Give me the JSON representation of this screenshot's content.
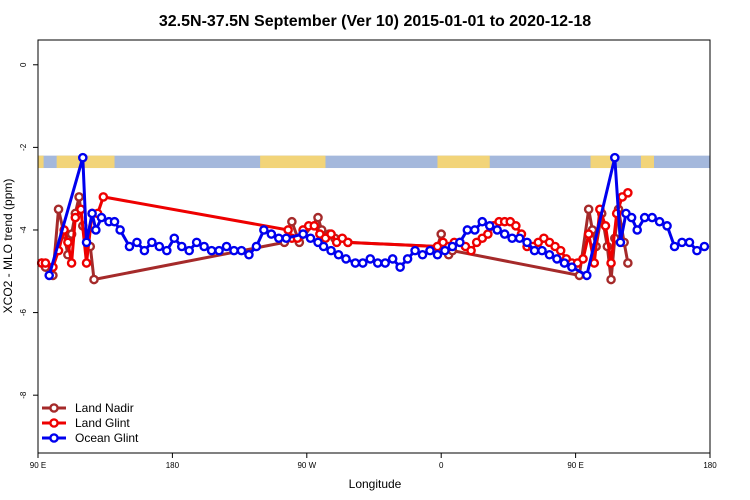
{
  "chart_data": {
    "type": "line",
    "title": "32.5N-37.5N September (Ver 10)   2015-01-01 to 2020-12-18",
    "xlabel": "Longitude",
    "ylabel": "XCO2 - MLO trend (ppm)",
    "xlim": [
      90,
      450
    ],
    "ylim": [
      -9.4,
      0.6
    ],
    "x_ticks": [
      {
        "value": 90,
        "label": "90 E"
      },
      {
        "value": 162,
        "label": "180"
      },
      {
        "value": 234,
        "label": "90 W"
      },
      {
        "value": 306,
        "label": "0"
      },
      {
        "value": 378,
        "label": "90 E"
      },
      {
        "value": 450,
        "label": "180"
      }
    ],
    "y_ticks": [
      0,
      -2,
      -4,
      -6,
      -8
    ],
    "land_ocean_band": {
      "y_top": -2.2,
      "y_bottom": -2.5,
      "ocean_color": "#a4b8dc",
      "land_color": "#f2d479",
      "land_ranges": [
        [
          90,
          93
        ],
        [
          100,
          131
        ],
        [
          209,
          244
        ],
        [
          304,
          332
        ],
        [
          386,
          398
        ],
        [
          413,
          420
        ]
      ]
    },
    "legend_position": "bottom-left",
    "series": [
      {
        "name": "Land Nadir",
        "color": "#a52a2a",
        "x": [
          92,
          94,
          98,
          101,
          104,
          106,
          108,
          110,
          112,
          114,
          118,
          120,
          222,
          226,
          230,
          240,
          242,
          246,
          249,
          256,
          304,
          306,
          308,
          310,
          312,
          380,
          385,
          387,
          389,
          392,
          395,
          397,
          399,
          401,
          404,
          406
        ],
        "y": [
          -4.8,
          -4.9,
          -5.1,
          -3.5,
          -4.1,
          -4.6,
          -4.1,
          -3.6,
          -3.2,
          -3.9,
          -4.4,
          -5.2,
          -4.3,
          -3.8,
          -4.3,
          -3.7,
          -4.0,
          -4.1,
          -4.2,
          -4.3,
          -4.4,
          -4.1,
          -4.4,
          -4.6,
          -4.5,
          -5.1,
          -3.5,
          -4.0,
          -4.4,
          -3.6,
          -4.4,
          -5.2,
          -4.2,
          -3.5,
          -4.3,
          -4.8
        ]
      },
      {
        "name": "Land Glint",
        "color": "#ee0000",
        "x": [
          92,
          94,
          98,
          101,
          104,
          106,
          108,
          110,
          113,
          116,
          119,
          122,
          125,
          224,
          226,
          229,
          232,
          235,
          238,
          241,
          244,
          247,
          250,
          253,
          256,
          304,
          307,
          310,
          313,
          316,
          319,
          322,
          325,
          328,
          331,
          334,
          337,
          340,
          343,
          346,
          349,
          352,
          355,
          358,
          361,
          364,
          367,
          370,
          373,
          376,
          379,
          382,
          385,
          388,
          391,
          394,
          397,
          400,
          403,
          406
        ],
        "y": [
          -4.8,
          -4.8,
          -4.9,
          -4.5,
          -4.0,
          -4.3,
          -4.8,
          -3.7,
          -3.5,
          -4.8,
          -3.6,
          -3.6,
          -3.2,
          -4.0,
          -4.2,
          -4.2,
          -4.0,
          -3.9,
          -3.9,
          -4.1,
          -4.2,
          -4.1,
          -4.3,
          -4.2,
          -4.3,
          -4.4,
          -4.3,
          -4.4,
          -4.3,
          -4.3,
          -4.4,
          -4.5,
          -4.3,
          -4.2,
          -4.1,
          -3.9,
          -3.8,
          -3.8,
          -3.8,
          -3.9,
          -4.1,
          -4.4,
          -4.4,
          -4.3,
          -4.2,
          -4.3,
          -4.4,
          -4.5,
          -4.7,
          -4.8,
          -4.8,
          -4.7,
          -4.1,
          -4.8,
          -3.5,
          -3.9,
          -4.8,
          -3.6,
          -3.2,
          -3.1
        ]
      },
      {
        "name": "Ocean Glint",
        "color": "#0000ee",
        "x": [
          96,
          114,
          116,
          119,
          121,
          124,
          128,
          131,
          134,
          139,
          143,
          147,
          151,
          155,
          159,
          163,
          167,
          171,
          175,
          179,
          183,
          187,
          191,
          195,
          199,
          203,
          207,
          211,
          215,
          219,
          223,
          232,
          236,
          240,
          243,
          247,
          251,
          255,
          260,
          264,
          268,
          272,
          276,
          280,
          284,
          288,
          292,
          296,
          300,
          304,
          308,
          312,
          316,
          320,
          324,
          328,
          332,
          336,
          340,
          344,
          348,
          352,
          356,
          360,
          364,
          368,
          372,
          376,
          384,
          399,
          402,
          405,
          408,
          411,
          415,
          419,
          423,
          427,
          431,
          435,
          439,
          443,
          447
        ],
        "y": [
          -5.1,
          -2.25,
          -4.3,
          -3.6,
          -4.0,
          -3.7,
          -3.8,
          -3.8,
          -4.0,
          -4.4,
          -4.3,
          -4.5,
          -4.3,
          -4.4,
          -4.5,
          -4.2,
          -4.4,
          -4.5,
          -4.3,
          -4.4,
          -4.5,
          -4.5,
          -4.4,
          -4.5,
          -4.5,
          -4.6,
          -4.4,
          -4.0,
          -4.1,
          -4.2,
          -4.2,
          -4.1,
          -4.2,
          -4.3,
          -4.4,
          -4.5,
          -4.6,
          -4.7,
          -4.8,
          -4.8,
          -4.7,
          -4.8,
          -4.8,
          -4.7,
          -4.9,
          -4.7,
          -4.5,
          -4.6,
          -4.5,
          -4.6,
          -4.5,
          -4.4,
          -4.3,
          -4.0,
          -4.0,
          -3.8,
          -3.9,
          -4.0,
          -4.1,
          -4.2,
          -4.2,
          -4.3,
          -4.5,
          -4.5,
          -4.6,
          -4.7,
          -4.8,
          -4.9,
          -5.1,
          -2.25,
          -4.3,
          -3.6,
          -3.7,
          -4.0,
          -3.7,
          -3.7,
          -3.8,
          -3.9,
          -4.4,
          -4.3,
          -4.3,
          -4.5,
          -4.4
        ]
      }
    ]
  }
}
